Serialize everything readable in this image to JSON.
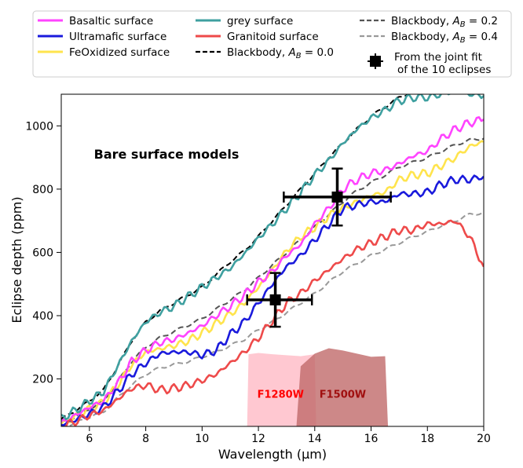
{
  "chart_data": {
    "type": "line",
    "annotation": "Bare surface models",
    "xlabel": "Wavelength (μm)",
    "ylabel": "Eclipse depth (ppm)",
    "xlim": [
      5,
      20
    ],
    "ylim": [
      50,
      1100
    ],
    "xticks": [
      6,
      8,
      10,
      12,
      14,
      16,
      18,
      20
    ],
    "yticks": [
      200,
      400,
      600,
      800,
      1000
    ],
    "grid": false,
    "legend_position": "top, above plot",
    "series": [
      {
        "name": "Basaltic surface",
        "color": "#ff44ff",
        "style": "solid",
        "x": [
          5,
          5.5,
          6,
          6.5,
          7,
          7.5,
          8,
          8.5,
          9,
          9.5,
          10,
          10.5,
          11,
          11.5,
          12,
          12.5,
          13,
          13.5,
          14,
          14.5,
          15,
          15.5,
          16,
          16.5,
          17,
          17.5,
          18,
          18.5,
          19,
          19.5,
          20
        ],
        "y": [
          60,
          85,
          110,
          130,
          185,
          255,
          290,
          315,
          325,
          345,
          368,
          400,
          430,
          465,
          505,
          540,
          590,
          625,
          690,
          740,
          800,
          830,
          850,
          860,
          880,
          905,
          920,
          960,
          990,
          1010,
          1020
        ]
      },
      {
        "name": "Ultramafic surface",
        "color": "#1a1adc",
        "style": "solid",
        "x": [
          5,
          5.5,
          6,
          6.5,
          7,
          7.5,
          8,
          8.5,
          9,
          9.5,
          10,
          10.5,
          11,
          11.5,
          12,
          12.5,
          13,
          13.5,
          14,
          14.5,
          15,
          15.5,
          16,
          16.5,
          17,
          17.5,
          18,
          18.5,
          19,
          19.5,
          20
        ],
        "y": [
          55,
          70,
          90,
          110,
          160,
          215,
          250,
          280,
          285,
          285,
          275,
          290,
          340,
          380,
          440,
          500,
          555,
          590,
          640,
          690,
          740,
          750,
          760,
          760,
          785,
          785,
          790,
          815,
          830,
          830,
          840
        ]
      },
      {
        "name": "FeOxidized surface",
        "color": "#ffe44d",
        "style": "solid",
        "x": [
          5,
          5.5,
          6,
          6.5,
          7,
          7.5,
          8,
          8.5,
          9,
          9.5,
          10,
          10.5,
          11,
          11.5,
          12,
          12.5,
          13,
          13.5,
          14,
          14.5,
          15,
          15.5,
          16,
          16.5,
          17,
          17.5,
          18,
          18.5,
          19,
          19.5,
          20
        ],
        "y": [
          58,
          80,
          105,
          125,
          180,
          245,
          285,
          295,
          305,
          320,
          345,
          375,
          405,
          440,
          490,
          545,
          605,
          650,
          680,
          715,
          740,
          760,
          780,
          790,
          830,
          845,
          850,
          875,
          900,
          935,
          950
        ]
      },
      {
        "name": "grey surface",
        "color": "#3fa0a0",
        "style": "solid",
        "x": [
          5,
          5.5,
          6,
          6.5,
          7,
          7.5,
          8,
          8.5,
          9,
          9.5,
          10,
          10.5,
          11,
          11.5,
          12,
          12.5,
          13,
          13.5,
          14,
          14.5,
          15,
          15.5,
          16,
          16.5,
          17,
          17.5,
          18,
          18.5,
          19,
          19.5,
          20
        ],
        "y": [
          75,
          100,
          130,
          160,
          240,
          320,
          380,
          410,
          430,
          460,
          490,
          520,
          550,
          595,
          645,
          690,
          740,
          790,
          845,
          890,
          945,
          990,
          1025,
          1050,
          1080,
          1090,
          1090,
          1100,
          1110,
          1100,
          1095
        ]
      },
      {
        "name": "Granitoid surface",
        "color": "#ee4a4a",
        "style": "solid",
        "x": [
          5,
          5.5,
          6,
          6.5,
          7,
          7.5,
          8,
          8.5,
          9,
          9.5,
          10,
          10.5,
          11,
          11.5,
          12,
          12.5,
          13,
          13.5,
          14,
          14.5,
          15,
          15.5,
          16,
          16.5,
          17,
          17.5,
          18,
          18.5,
          19,
          19.5,
          20
        ],
        "y": [
          50,
          65,
          85,
          100,
          135,
          170,
          180,
          165,
          170,
          180,
          195,
          215,
          250,
          285,
          330,
          385,
          440,
          470,
          510,
          545,
          580,
          610,
          630,
          650,
          670,
          670,
          690,
          690,
          700,
          650,
          555
        ]
      },
      {
        "name": "Blackbody, A_B = 0.0",
        "color": "#000000",
        "style": "dashed",
        "x": [
          5,
          5.5,
          6,
          6.5,
          7,
          7.5,
          8,
          8.5,
          9,
          9.5,
          10,
          10.5,
          11,
          11.5,
          12,
          12.5,
          13,
          13.5,
          14,
          14.5,
          15,
          15.5,
          16,
          16.5,
          17,
          17.5,
          18,
          18.5,
          19,
          19.5,
          20
        ],
        "y": [
          72,
          100,
          130,
          165,
          240,
          320,
          380,
          415,
          440,
          465,
          490,
          530,
          570,
          605,
          650,
          700,
          750,
          800,
          850,
          900,
          945,
          990,
          1030,
          1060,
          1090,
          1110,
          1130,
          1150,
          1160,
          1170,
          1180
        ]
      },
      {
        "name": "Blackbody, A_B = 0.2",
        "color": "#555555",
        "style": "dashed",
        "x": [
          5,
          5.5,
          6,
          6.5,
          7,
          7.5,
          8,
          8.5,
          9,
          9.5,
          10,
          10.5,
          11,
          11.5,
          12,
          12.5,
          13,
          13.5,
          14,
          14.5,
          15,
          15.5,
          16,
          16.5,
          17,
          17.5,
          18,
          18.5,
          19,
          19.5,
          20
        ],
        "y": [
          60,
          80,
          105,
          130,
          190,
          255,
          300,
          330,
          350,
          370,
          390,
          420,
          450,
          480,
          520,
          560,
          600,
          640,
          680,
          720,
          760,
          795,
          820,
          845,
          870,
          885,
          900,
          920,
          940,
          955,
          960
        ]
      },
      {
        "name": "Blackbody, A_B = 0.4",
        "color": "#999999",
        "style": "dashed",
        "x": [
          5,
          5.5,
          6,
          6.5,
          7,
          7.5,
          8,
          8.5,
          9,
          9.5,
          10,
          10.5,
          11,
          11.5,
          12,
          12.5,
          13,
          13.5,
          14,
          14.5,
          15,
          15.5,
          16,
          16.5,
          17,
          17.5,
          18,
          18.5,
          19,
          19.5,
          20
        ],
        "y": [
          50,
          60,
          80,
          95,
          140,
          180,
          215,
          235,
          245,
          255,
          270,
          285,
          305,
          325,
          355,
          380,
          410,
          440,
          470,
          505,
          540,
          565,
          590,
          610,
          630,
          650,
          665,
          685,
          700,
          720,
          725
        ]
      }
    ],
    "joint_fit": {
      "name": "From the joint fit of the 10 eclipses",
      "points": [
        {
          "x": 12.6,
          "y": 450,
          "xerr": [
            1.0,
            1.3
          ],
          "yerr": [
            85,
            85
          ]
        },
        {
          "x": 14.8,
          "y": 775,
          "xerr": [
            1.9,
            1.9
          ],
          "yerr": [
            90,
            90
          ]
        }
      ]
    },
    "filters": [
      {
        "label": "F1280W",
        "color": "#ffb6c1",
        "text_color": "#ff0000",
        "x": [
          11.6,
          11.65,
          12.0,
          12.5,
          13.0,
          13.5,
          14.0,
          14.05
        ],
        "y": [
          50,
          278,
          282,
          278,
          275,
          272,
          278,
          50
        ]
      },
      {
        "label": "F1500W",
        "color": "#c06a6a",
        "text_color": "#a01010",
        "x": [
          13.35,
          13.5,
          14.0,
          14.5,
          15.0,
          15.5,
          16.0,
          16.5,
          16.6
        ],
        "y": [
          50,
          240,
          280,
          297,
          290,
          280,
          270,
          272,
          50
        ]
      }
    ],
    "legend": [
      [
        "Basaltic surface",
        "Ultramafic surface",
        "FeOxidized surface"
      ],
      [
        "grey surface",
        "Granitoid surface",
        "Blackbody, A_B = 0.0"
      ],
      [
        "Blackbody, A_B = 0.2",
        "Blackbody, A_B = 0.4",
        "From the joint fit of the 10 eclipses"
      ]
    ]
  }
}
